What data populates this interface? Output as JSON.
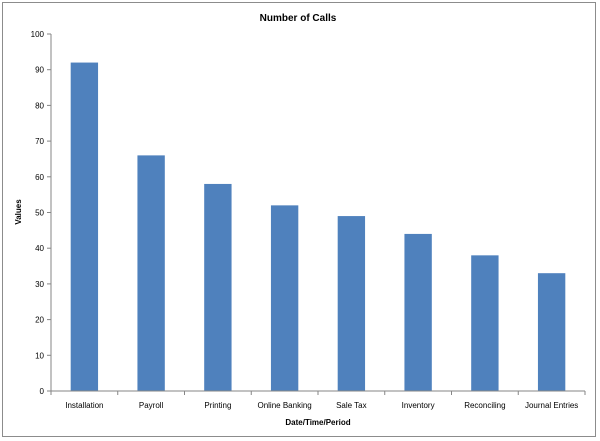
{
  "chart_data": {
    "type": "bar",
    "title": "Number of Calls",
    "xlabel": "Date/Time/Period",
    "ylabel": "Values",
    "categories": [
      "Installation",
      "Payroll",
      "Printing",
      "Online Banking",
      "Sale Tax",
      "Inventory",
      "Reconciling",
      "Journal Entries"
    ],
    "values": [
      92,
      66,
      58,
      52,
      49,
      44,
      38,
      33
    ],
    "ylim": [
      0,
      100
    ],
    "yticks": [
      0,
      10,
      20,
      30,
      40,
      50,
      60,
      70,
      80,
      90,
      100
    ],
    "grid": false,
    "legend": false,
    "bar_color": "#4f81bd"
  }
}
